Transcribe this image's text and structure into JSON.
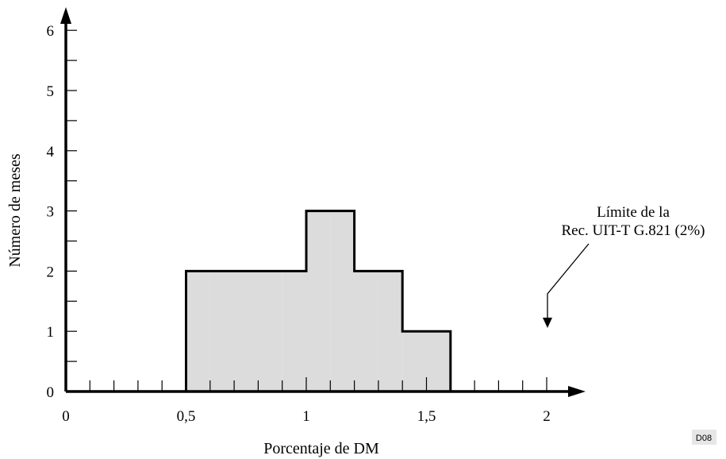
{
  "chart_data": {
    "type": "bar",
    "subtype": "histogram",
    "title": "",
    "xlabel": "Porcentaje de DM",
    "ylabel": "Número de meses",
    "xlim": [
      0,
      2.1
    ],
    "ylim": [
      0,
      6.5
    ],
    "x_ticks": [
      {
        "value": 0,
        "label": "0"
      },
      {
        "value": 0.5,
        "label": "0,5"
      },
      {
        "value": 1,
        "label": "1"
      },
      {
        "value": 1.5,
        "label": "1,5"
      },
      {
        "value": 2,
        "label": "2"
      }
    ],
    "y_ticks": [
      {
        "value": 0,
        "label": "0"
      },
      {
        "value": 1,
        "label": "1"
      },
      {
        "value": 2,
        "label": "2"
      },
      {
        "value": 3,
        "label": "3"
      },
      {
        "value": 4,
        "label": "4"
      },
      {
        "value": 5,
        "label": "5"
      },
      {
        "value": 6,
        "label": "6"
      }
    ],
    "x_minor_step": 0.1,
    "y_minor_step": 0.5,
    "bins": [
      {
        "x0": 0.5,
        "x1": 0.6,
        "value": 2
      },
      {
        "x0": 0.6,
        "x1": 0.7,
        "value": 2
      },
      {
        "x0": 0.7,
        "x1": 0.8,
        "value": 2
      },
      {
        "x0": 0.8,
        "x1": 0.9,
        "value": 2
      },
      {
        "x0": 0.9,
        "x1": 1.0,
        "value": 2
      },
      {
        "x0": 1.0,
        "x1": 1.1,
        "value": 3
      },
      {
        "x0": 1.1,
        "x1": 1.2,
        "value": 3
      },
      {
        "x0": 1.2,
        "x1": 1.3,
        "value": 2
      },
      {
        "x0": 1.3,
        "x1": 1.4,
        "value": 2
      },
      {
        "x0": 1.4,
        "x1": 1.5,
        "value": 1
      },
      {
        "x0": 1.5,
        "x1": 1.6,
        "value": 1
      }
    ],
    "fill_color": "#dcdcdc",
    "stroke_color": "#000000",
    "grid": false,
    "annotation": {
      "lines": [
        "Límite de la",
        "Rec. UIT-T G.821 (2%)"
      ],
      "arrow_target_x": 2,
      "arrow_target_y": 0.7
    }
  },
  "badge": "D08"
}
